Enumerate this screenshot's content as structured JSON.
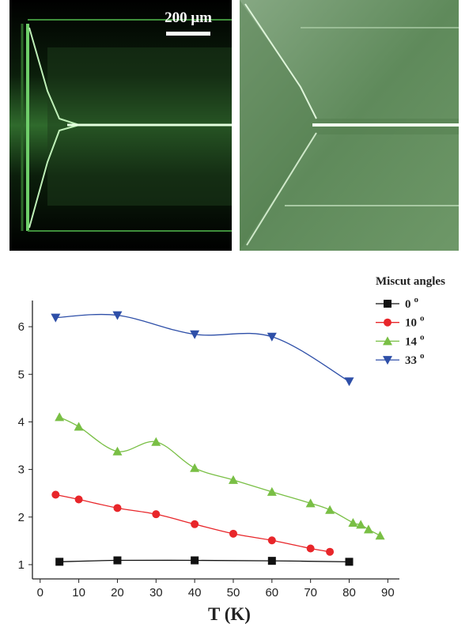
{
  "images": {
    "scale_bar_label": "200 μm"
  },
  "chart_data": {
    "type": "line",
    "x_label": "T (K)",
    "xlim": [
      -2,
      93
    ],
    "ylim": [
      0.7,
      6.55
    ],
    "xticks": [
      0,
      10,
      20,
      30,
      40,
      50,
      60,
      70,
      80,
      90
    ],
    "yticks": [
      1,
      2,
      3,
      4,
      5,
      6
    ],
    "smooth": true,
    "legend": {
      "title": "Miscut angles",
      "degree_mark": "o",
      "position": "upper right"
    },
    "series": [
      {
        "name": "0",
        "color": "#111111",
        "marker": "square",
        "x": [
          5,
          20,
          40,
          60,
          80
        ],
        "values": [
          1.06,
          1.09,
          1.09,
          1.08,
          1.06
        ]
      },
      {
        "name": "10",
        "color": "#e8262a",
        "marker": "circle",
        "x": [
          4,
          10,
          20,
          30,
          40,
          50,
          60,
          70,
          75
        ],
        "values": [
          2.47,
          2.37,
          2.19,
          2.06,
          1.85,
          1.65,
          1.51,
          1.34,
          1.27
        ]
      },
      {
        "name": "14",
        "color": "#79bf45",
        "marker": "triangle-up",
        "x": [
          5,
          10,
          20,
          30,
          40,
          50,
          60,
          70,
          75,
          81,
          83,
          85,
          88
        ],
        "values": [
          4.1,
          3.9,
          3.38,
          3.58,
          3.03,
          2.78,
          2.53,
          2.29,
          2.15,
          1.88,
          1.84,
          1.74,
          1.61
        ]
      },
      {
        "name": "33",
        "color": "#2e4fa8",
        "marker": "triangle-down",
        "x": [
          4,
          20,
          40,
          60,
          80
        ],
        "values": [
          6.19,
          6.24,
          5.84,
          5.79,
          4.85
        ]
      }
    ]
  }
}
